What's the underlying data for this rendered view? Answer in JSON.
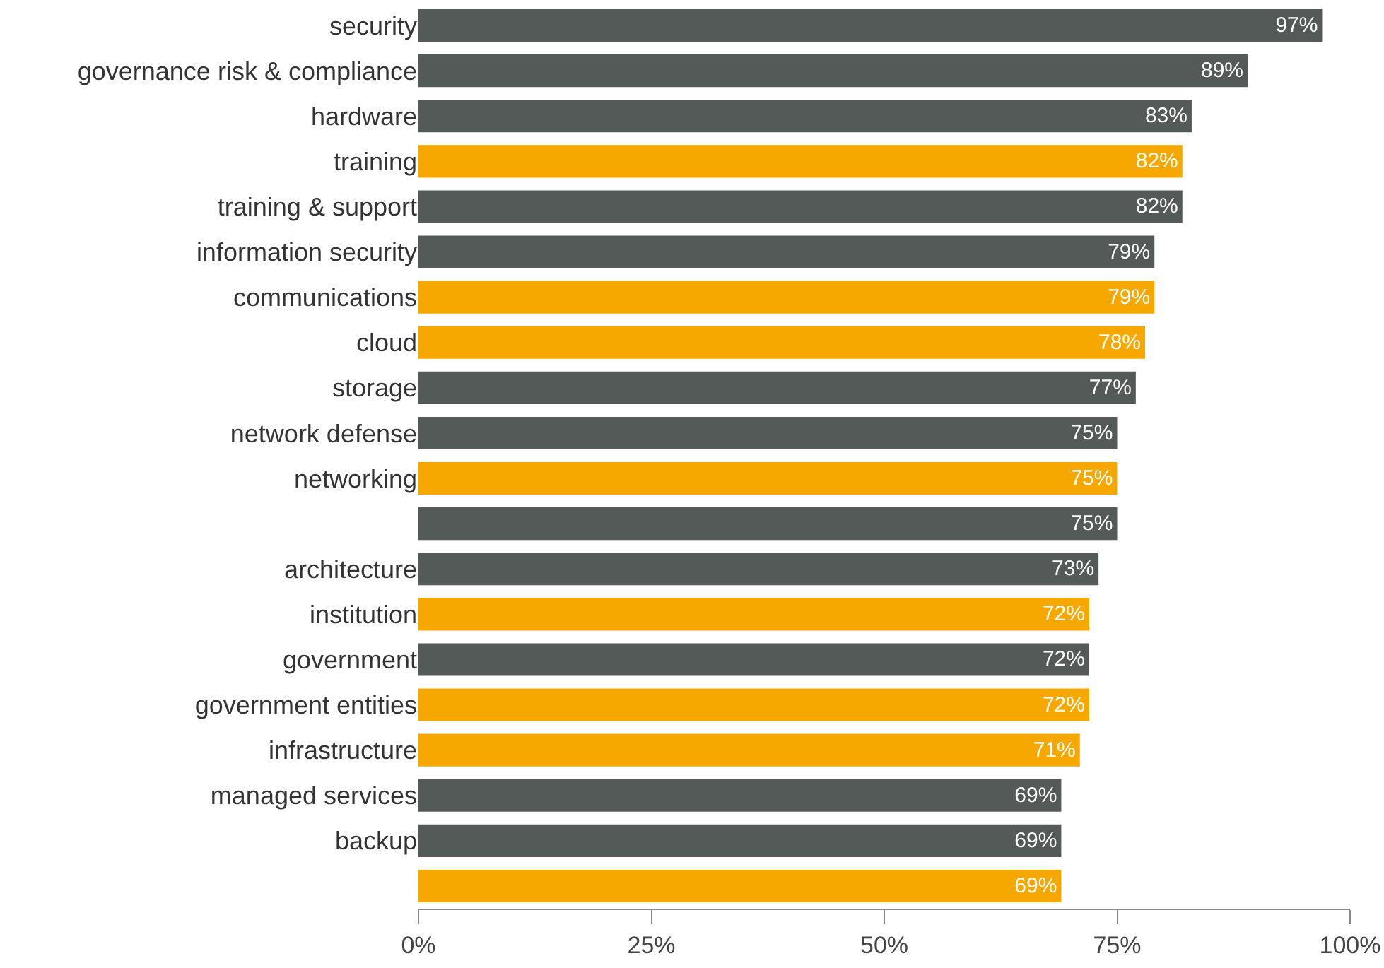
{
  "chart_data": {
    "type": "bar",
    "orientation": "horizontal",
    "categories": [
      "security",
      "governance risk & compliance",
      "hardware",
      "training",
      "training & support",
      "information security",
      "communications",
      "cloud",
      "storage",
      "network defense",
      "networking",
      null,
      "architecture",
      "institution",
      "government",
      "government entities",
      "infrastructure",
      "managed services",
      "backup",
      null
    ],
    "values": [
      97,
      89,
      83,
      82,
      82,
      79,
      79,
      78,
      77,
      75,
      75,
      75,
      73,
      72,
      72,
      72,
      71,
      69,
      69,
      69
    ],
    "colors": [
      "#535a58",
      "#535a58",
      "#535a58",
      "#f7a800",
      "#535a58",
      "#535a58",
      "#f7a800",
      "#f7a800",
      "#535a58",
      "#535a58",
      "#f7a800",
      "#535a58",
      "#535a58",
      "#f7a800",
      "#535a58",
      "#f7a800",
      "#f7a800",
      "#535a58",
      "#535a58",
      "#f7a800"
    ],
    "value_labels": [
      "97%",
      "89%",
      "83%",
      "82%",
      "82%",
      "79%",
      "79%",
      "78%",
      "77%",
      "75%",
      "75%",
      "75%",
      "73%",
      "72%",
      "72%",
      "72%",
      "71%",
      "69%",
      "69%",
      "69%"
    ],
    "xlim": [
      0,
      100
    ],
    "xticks": [
      {
        "value": 0,
        "label": "0%"
      },
      {
        "value": 25,
        "label": "25%"
      },
      {
        "value": 50,
        "label": "50%"
      },
      {
        "value": 75,
        "label": "75%"
      },
      {
        "value": 100,
        "label": "100%"
      }
    ],
    "grid": false,
    "legend": false
  }
}
